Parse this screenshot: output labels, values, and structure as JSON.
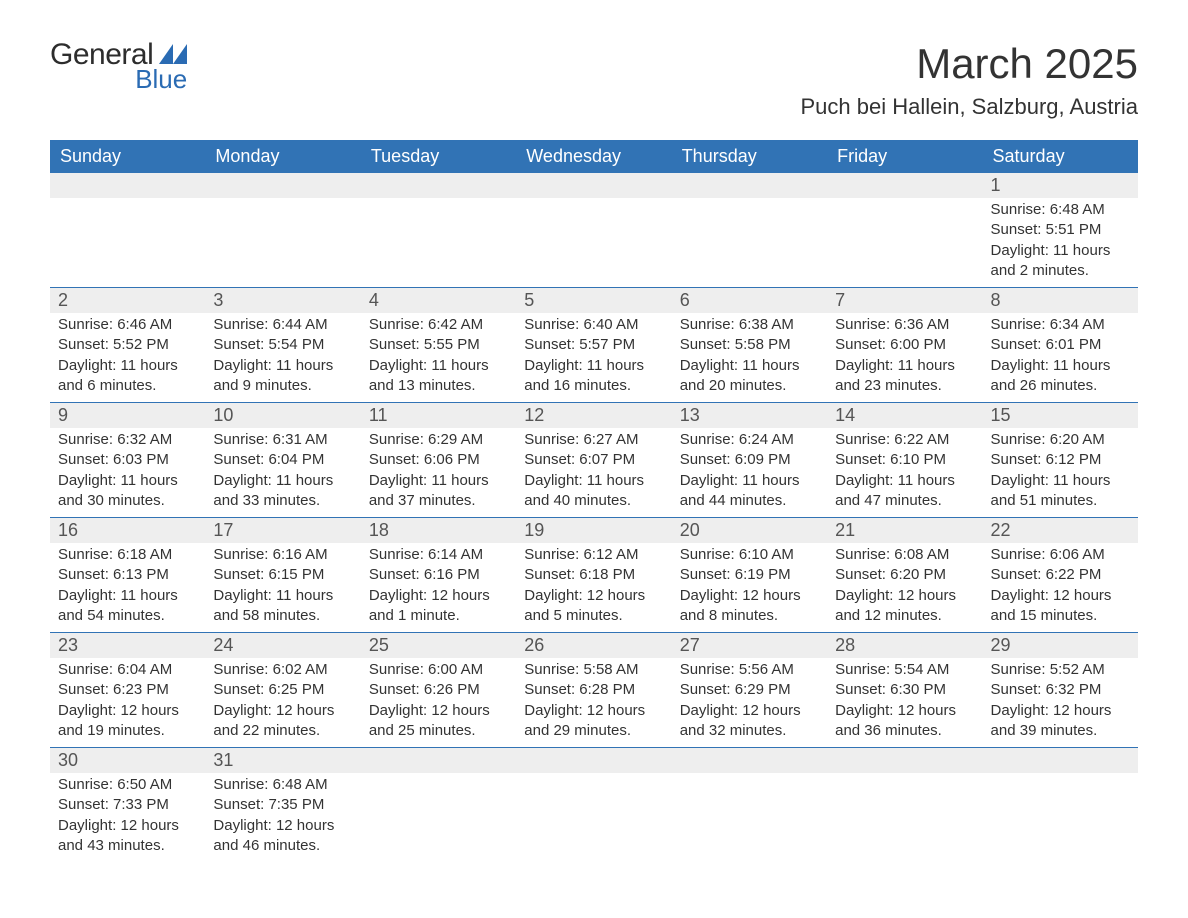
{
  "logo": {
    "text_general": "General",
    "text_blue": "Blue",
    "icon_color": "#2a6bb3"
  },
  "title": "March 2025",
  "location": "Puch bei Hallein, Salzburg, Austria",
  "header_bg": "#3173b5",
  "header_text_color": "#ffffff",
  "row_divider_color": "#3173b5",
  "daynum_bg": "#eeeeee",
  "days_of_week": [
    "Sunday",
    "Monday",
    "Tuesday",
    "Wednesday",
    "Thursday",
    "Friday",
    "Saturday"
  ],
  "weeks": [
    [
      {
        "type": "empty"
      },
      {
        "type": "empty"
      },
      {
        "type": "empty"
      },
      {
        "type": "empty"
      },
      {
        "type": "empty"
      },
      {
        "type": "empty"
      },
      {
        "day": "1",
        "sunrise": "Sunrise: 6:48 AM",
        "sunset": "Sunset: 5:51 PM",
        "daylight": "Daylight: 11 hours and 2 minutes."
      }
    ],
    [
      {
        "day": "2",
        "sunrise": "Sunrise: 6:46 AM",
        "sunset": "Sunset: 5:52 PM",
        "daylight": "Daylight: 11 hours and 6 minutes."
      },
      {
        "day": "3",
        "sunrise": "Sunrise: 6:44 AM",
        "sunset": "Sunset: 5:54 PM",
        "daylight": "Daylight: 11 hours and 9 minutes."
      },
      {
        "day": "4",
        "sunrise": "Sunrise: 6:42 AM",
        "sunset": "Sunset: 5:55 PM",
        "daylight": "Daylight: 11 hours and 13 minutes."
      },
      {
        "day": "5",
        "sunrise": "Sunrise: 6:40 AM",
        "sunset": "Sunset: 5:57 PM",
        "daylight": "Daylight: 11 hours and 16 minutes."
      },
      {
        "day": "6",
        "sunrise": "Sunrise: 6:38 AM",
        "sunset": "Sunset: 5:58 PM",
        "daylight": "Daylight: 11 hours and 20 minutes."
      },
      {
        "day": "7",
        "sunrise": "Sunrise: 6:36 AM",
        "sunset": "Sunset: 6:00 PM",
        "daylight": "Daylight: 11 hours and 23 minutes."
      },
      {
        "day": "8",
        "sunrise": "Sunrise: 6:34 AM",
        "sunset": "Sunset: 6:01 PM",
        "daylight": "Daylight: 11 hours and 26 minutes."
      }
    ],
    [
      {
        "day": "9",
        "sunrise": "Sunrise: 6:32 AM",
        "sunset": "Sunset: 6:03 PM",
        "daylight": "Daylight: 11 hours and 30 minutes."
      },
      {
        "day": "10",
        "sunrise": "Sunrise: 6:31 AM",
        "sunset": "Sunset: 6:04 PM",
        "daylight": "Daylight: 11 hours and 33 minutes."
      },
      {
        "day": "11",
        "sunrise": "Sunrise: 6:29 AM",
        "sunset": "Sunset: 6:06 PM",
        "daylight": "Daylight: 11 hours and 37 minutes."
      },
      {
        "day": "12",
        "sunrise": "Sunrise: 6:27 AM",
        "sunset": "Sunset: 6:07 PM",
        "daylight": "Daylight: 11 hours and 40 minutes."
      },
      {
        "day": "13",
        "sunrise": "Sunrise: 6:24 AM",
        "sunset": "Sunset: 6:09 PM",
        "daylight": "Daylight: 11 hours and 44 minutes."
      },
      {
        "day": "14",
        "sunrise": "Sunrise: 6:22 AM",
        "sunset": "Sunset: 6:10 PM",
        "daylight": "Daylight: 11 hours and 47 minutes."
      },
      {
        "day": "15",
        "sunrise": "Sunrise: 6:20 AM",
        "sunset": "Sunset: 6:12 PM",
        "daylight": "Daylight: 11 hours and 51 minutes."
      }
    ],
    [
      {
        "day": "16",
        "sunrise": "Sunrise: 6:18 AM",
        "sunset": "Sunset: 6:13 PM",
        "daylight": "Daylight: 11 hours and 54 minutes."
      },
      {
        "day": "17",
        "sunrise": "Sunrise: 6:16 AM",
        "sunset": "Sunset: 6:15 PM",
        "daylight": "Daylight: 11 hours and 58 minutes."
      },
      {
        "day": "18",
        "sunrise": "Sunrise: 6:14 AM",
        "sunset": "Sunset: 6:16 PM",
        "daylight": "Daylight: 12 hours and 1 minute."
      },
      {
        "day": "19",
        "sunrise": "Sunrise: 6:12 AM",
        "sunset": "Sunset: 6:18 PM",
        "daylight": "Daylight: 12 hours and 5 minutes."
      },
      {
        "day": "20",
        "sunrise": "Sunrise: 6:10 AM",
        "sunset": "Sunset: 6:19 PM",
        "daylight": "Daylight: 12 hours and 8 minutes."
      },
      {
        "day": "21",
        "sunrise": "Sunrise: 6:08 AM",
        "sunset": "Sunset: 6:20 PM",
        "daylight": "Daylight: 12 hours and 12 minutes."
      },
      {
        "day": "22",
        "sunrise": "Sunrise: 6:06 AM",
        "sunset": "Sunset: 6:22 PM",
        "daylight": "Daylight: 12 hours and 15 minutes."
      }
    ],
    [
      {
        "day": "23",
        "sunrise": "Sunrise: 6:04 AM",
        "sunset": "Sunset: 6:23 PM",
        "daylight": "Daylight: 12 hours and 19 minutes."
      },
      {
        "day": "24",
        "sunrise": "Sunrise: 6:02 AM",
        "sunset": "Sunset: 6:25 PM",
        "daylight": "Daylight: 12 hours and 22 minutes."
      },
      {
        "day": "25",
        "sunrise": "Sunrise: 6:00 AM",
        "sunset": "Sunset: 6:26 PM",
        "daylight": "Daylight: 12 hours and 25 minutes."
      },
      {
        "day": "26",
        "sunrise": "Sunrise: 5:58 AM",
        "sunset": "Sunset: 6:28 PM",
        "daylight": "Daylight: 12 hours and 29 minutes."
      },
      {
        "day": "27",
        "sunrise": "Sunrise: 5:56 AM",
        "sunset": "Sunset: 6:29 PM",
        "daylight": "Daylight: 12 hours and 32 minutes."
      },
      {
        "day": "28",
        "sunrise": "Sunrise: 5:54 AM",
        "sunset": "Sunset: 6:30 PM",
        "daylight": "Daylight: 12 hours and 36 minutes."
      },
      {
        "day": "29",
        "sunrise": "Sunrise: 5:52 AM",
        "sunset": "Sunset: 6:32 PM",
        "daylight": "Daylight: 12 hours and 39 minutes."
      }
    ],
    [
      {
        "day": "30",
        "sunrise": "Sunrise: 6:50 AM",
        "sunset": "Sunset: 7:33 PM",
        "daylight": "Daylight: 12 hours and 43 minutes."
      },
      {
        "day": "31",
        "sunrise": "Sunrise: 6:48 AM",
        "sunset": "Sunset: 7:35 PM",
        "daylight": "Daylight: 12 hours and 46 minutes."
      },
      {
        "type": "empty"
      },
      {
        "type": "empty"
      },
      {
        "type": "empty"
      },
      {
        "type": "empty"
      },
      {
        "type": "empty"
      }
    ]
  ]
}
